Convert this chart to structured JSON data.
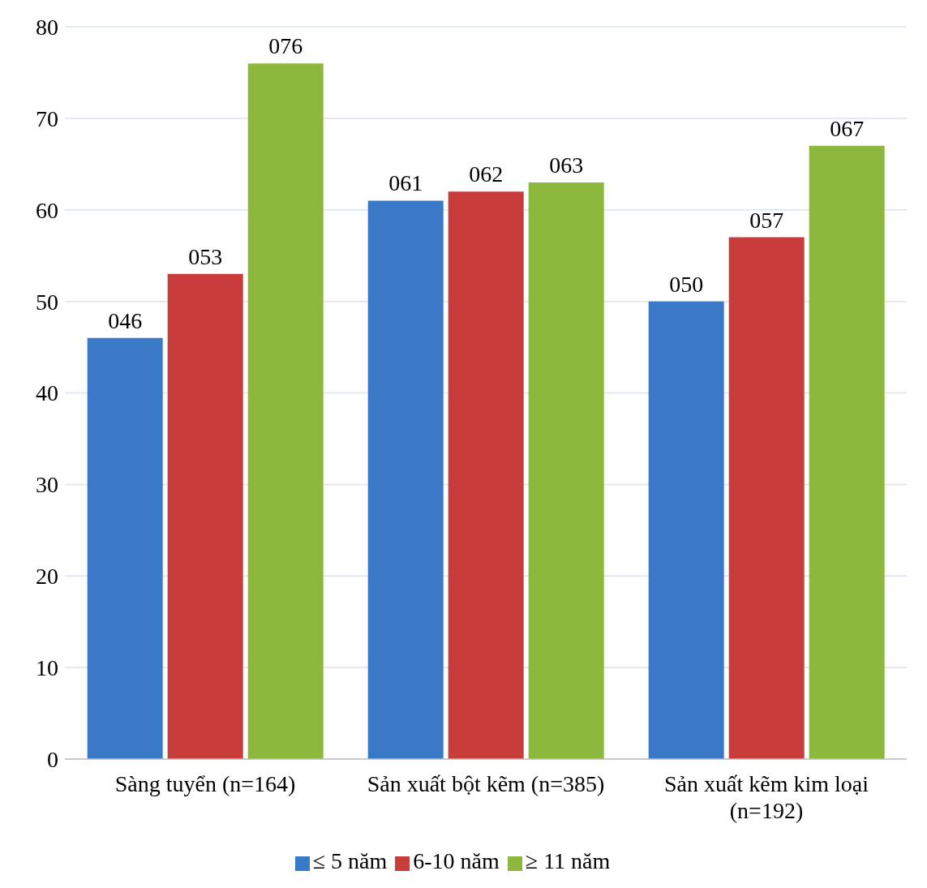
{
  "chart_data": {
    "type": "bar",
    "categories": [
      "Sàng tuyển (n=164)",
      "Sản xuất bột kẽm (n=385)",
      "Sản xuất kẽm kim loại (n=192)"
    ],
    "series": [
      {
        "name": "≤ 5 năm",
        "color": "#3a78c8",
        "values": [
          46,
          61,
          50
        ],
        "value_labels": [
          "046",
          "061",
          "050"
        ]
      },
      {
        "name": "6-10 năm",
        "color": "#c83c3c",
        "values": [
          53,
          62,
          57
        ],
        "value_labels": [
          "053",
          "062",
          "057"
        ]
      },
      {
        "name": "≥ 11 năm",
        "color": "#8db83e",
        "values": [
          76,
          63,
          67
        ],
        "value_labels": [
          "076",
          "063",
          "067"
        ]
      }
    ],
    "ylim": [
      0,
      80
    ],
    "yticks": [
      0,
      10,
      20,
      30,
      40,
      50,
      60,
      70,
      80
    ],
    "grid": "y",
    "legend": "bottom"
  }
}
